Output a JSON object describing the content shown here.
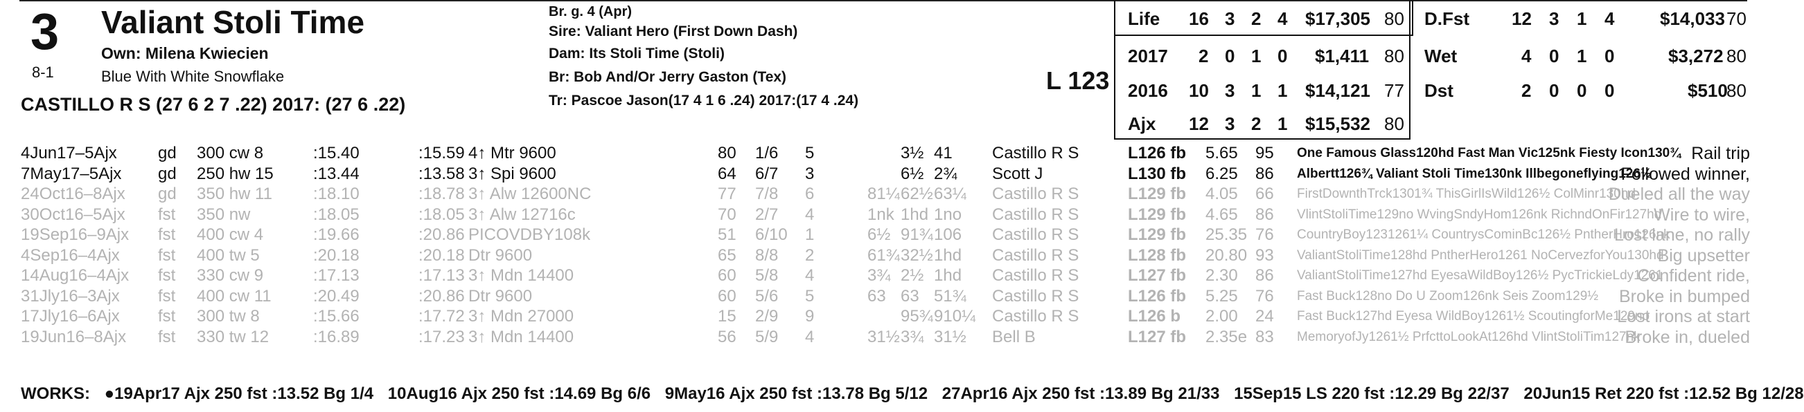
{
  "horse": {
    "program_number": "3",
    "odds": "8-1",
    "name": "Valiant Stoli Time",
    "owner": "Own: Milena Kwiecien",
    "silks": "Blue With White Snowflake",
    "jockey_line": "CASTILLO R S (27 6 2 7 .22) 2017: (27 6 .22)"
  },
  "breeding": {
    "sex_age": "Br. g. 4 (Apr)",
    "sire": "Sire: Valiant Hero (First Down Dash)",
    "dam": "Dam: Its Stoli Time (Stoli)",
    "breeder": "Br:   Bob And/Or Jerry Gaston (Tex)",
    "trainer": "Tr:    Pascoe Jason(17 4 1 6 .24)  2017:(17 4 .24)"
  },
  "weight_label": "L 123",
  "record_left": [
    {
      "label": "Life",
      "starts": "16",
      "w": "3",
      "p": "2",
      "s": "4",
      "earnings": "$17,305",
      "sr": "80"
    },
    {
      "label": "2017",
      "starts": "2",
      "w": "0",
      "p": "1",
      "s": "0",
      "earnings": "$1,411",
      "sr": "80"
    },
    {
      "label": "2016",
      "starts": "10",
      "w": "3",
      "p": "1",
      "s": "1",
      "earnings": "$14,121",
      "sr": "77"
    },
    {
      "label": "Ajx",
      "starts": "12",
      "w": "3",
      "p": "2",
      "s": "1",
      "earnings": "$15,532",
      "sr": "80"
    }
  ],
  "record_right": [
    {
      "label": "D.Fst",
      "starts": "12",
      "w": "3",
      "p": "1",
      "s": "4",
      "earnings": "$14,033",
      "sr": "70"
    },
    {
      "label": "Wet",
      "starts": "4",
      "w": "0",
      "p": "1",
      "s": "0",
      "earnings": "$3,272",
      "sr": "80"
    },
    {
      "label": "Dst",
      "starts": "2",
      "w": "0",
      "p": "0",
      "s": "0",
      "earnings": "$510",
      "sr": "80"
    }
  ],
  "past_performances": [
    {
      "date": "4Jun17–5Ajx",
      "cond": "gd",
      "dist": "300 cw 8",
      "f1": ":15.40",
      "f2": ":15.59",
      "race": "4↑ Mtr 9600",
      "sr": "80",
      "pp": "1/6",
      "st": "5",
      "c1": "",
      "c2": "3½",
      "fin": "41",
      "jockey": "Castillo R S",
      "wt": "L126 fb",
      "odds": "5.65",
      "spd": "95",
      "comp": "One Famous Glass120hd Fast Man Vic125nk Fiesty Icon130¾",
      "comment": "Rail trip",
      "recent": true
    },
    {
      "date": "7May17–5Ajx",
      "cond": "gd",
      "dist": "250 hw 15",
      "f1": ":13.44",
      "f2": ":13.58",
      "race": "3↑ Spi 9600",
      "sr": "64",
      "pp": "6/7",
      "st": "3",
      "c1": "",
      "c2": "6½",
      "fin": "2¾",
      "jockey": "Scott J",
      "wt": "L130 fb",
      "odds": "6.25",
      "spd": "86",
      "comp": "Albertt126¾ Valiant Stoli Time130nk Illbegoneflying126½",
      "comment": "Followed winner,",
      "recent": true
    },
    {
      "date": "24Oct16–8Ajx",
      "cond": "gd",
      "dist": "350 hw 11",
      "f1": ":18.10",
      "f2": ":18.78",
      "race": "3↑ Alw 12600NC",
      "sr": "77",
      "pp": "7/8",
      "st": "6",
      "c1": "81¼",
      "c2": "62½",
      "fin": "63¼",
      "jockey": "Castillo R S",
      "wt": "L129 fb",
      "odds": "4.05",
      "spd": "66",
      "comp": "FirstDownthTrck1301¾ ThisGirlIsWild126½ ColMinr130hd",
      "comment": "Dueled all the way",
      "recent": false
    },
    {
      "date": "30Oct16–5Ajx",
      "cond": "fst",
      "dist": "350 nw",
      "f1": ":18.05",
      "f2": ":18.05",
      "race": "3↑ Alw 12716c",
      "sr": "70",
      "pp": "2/7",
      "st": "4",
      "c1": "1nk",
      "c2": "1hd",
      "fin": "1no",
      "jockey": "Castillo R S",
      "wt": "L129 fb",
      "odds": "4.65",
      "spd": "86",
      "comp": "VlintStoliTime129no WvingSndyHom126nk RichndOnFir127hd",
      "comment": "Wire to wire,",
      "recent": false
    },
    {
      "date": "19Sep16–9Ajx",
      "cond": "fst",
      "dist": "400 cw 4",
      "f1": ":19.66",
      "f2": ":20.86",
      "race": "PICOVDBY108k",
      "sr": "51",
      "pp": "6/10",
      "st": "1",
      "c1": "6½",
      "c2": "91¾",
      "fin": "106",
      "jockey": "Castillo R S",
      "wt": "L129 fb",
      "odds": "25.35",
      "spd": "76",
      "comp": "CountryBoy1231261¼ CountrysCominBc126½ PntherHro126nk",
      "comment": "Lost lane, no rally",
      "recent": false
    },
    {
      "date": "4Sep16–4Ajx",
      "cond": "fst",
      "dist": "400 tw 5",
      "f1": ":20.18",
      "f2": ":20.18",
      "race": "Dtr 9600",
      "sr": "65",
      "pp": "8/8",
      "st": "2",
      "c1": "61¾",
      "c2": "32½",
      "fin": "1hd",
      "jockey": "Castillo R S",
      "wt": "L128 fb",
      "odds": "20.80",
      "spd": "93",
      "comp": "ValiantStoliTime128hd PntherHero1261 NoCervezforYou130hd",
      "comment": "Big upsetter",
      "recent": false
    },
    {
      "date": "14Aug16–4Ajx",
      "cond": "fst",
      "dist": "330 cw 9",
      "f1": ":17.13",
      "f2": ":17.13",
      "race": "3↑ Mdn 14400",
      "sr": "60",
      "pp": "5/8",
      "st": "4",
      "c1": "3¾",
      "c2": "2½",
      "fin": "1hd",
      "jockey": "Castillo R S",
      "wt": "L127 fb",
      "odds": "2.30",
      "spd": "86",
      "comp": "ValiantStoliTime127hd EyesaWildBoy126½ PycTrickieLdy1261",
      "comment": "Confident ride,",
      "recent": false
    },
    {
      "date": "31Jly16–3Ajx",
      "cond": "fst",
      "dist": "400 cw 11",
      "f1": ":20.49",
      "f2": ":20.86",
      "race": "Dtr 9600",
      "sr": "60",
      "pp": "5/6",
      "st": "5",
      "c1": "63",
      "c2": "63",
      "fin": "51¾",
      "jockey": "Castillo R S",
      "wt": "L126 fb",
      "odds": "5.25",
      "spd": "76",
      "comp": "Fast Buck128no Do U Zoom126nk Seis Zoom129½",
      "comment": "Broke in bumped",
      "recent": false
    },
    {
      "date": "17Jly16–6Ajx",
      "cond": "fst",
      "dist": "300 tw 8",
      "f1": ":15.66",
      "f2": ":17.72",
      "race": "3↑ Mdn 27000",
      "sr": "15",
      "pp": "2/9",
      "st": "9",
      "c1": "",
      "c2": "95¾",
      "fin": "910¼",
      "jockey": "Castillo R S",
      "wt": "L126 b",
      "odds": "2.00",
      "spd": "24",
      "comp": "Fast Buck127hd Eyesa WildBoy1261½ ScoutingforMe129no",
      "comment": "Lost irons at start",
      "recent": false
    },
    {
      "date": "19Jun16–8Ajx",
      "cond": "fst",
      "dist": "330 tw 12",
      "f1": ":16.89",
      "f2": ":17.23",
      "race": "3↑ Mdn 14400",
      "sr": "56",
      "pp": "5/9",
      "st": "4",
      "c1": "31½",
      "c2": "3¾",
      "fin": "31½",
      "jockey": "Bell B",
      "wt": "L127 fb",
      "odds": "2.35e",
      "spd": "83",
      "comp": "MemoryofJy1261½ PrfcttoLookAt126hd VlintStoliTim127nk",
      "comment": "Broke in, dueled",
      "recent": false
    }
  ],
  "works": {
    "label": "WORKS:",
    "items": [
      "●19Apr17 Ajx 250 fst :13.52 Bg 1/4",
      "10Aug16 Ajx 250 fst :14.69 Bg 6/6",
      "9May16 Ajx 250 fst :13.78 Bg 5/12",
      "27Apr16 Ajx 250 fst :13.89 Bg 21/33",
      "15Sep15 LS 220 fst :12.29 Bg 22/37",
      "20Jun15 Ret 220 fst :12.52 Bg 12/28"
    ]
  }
}
